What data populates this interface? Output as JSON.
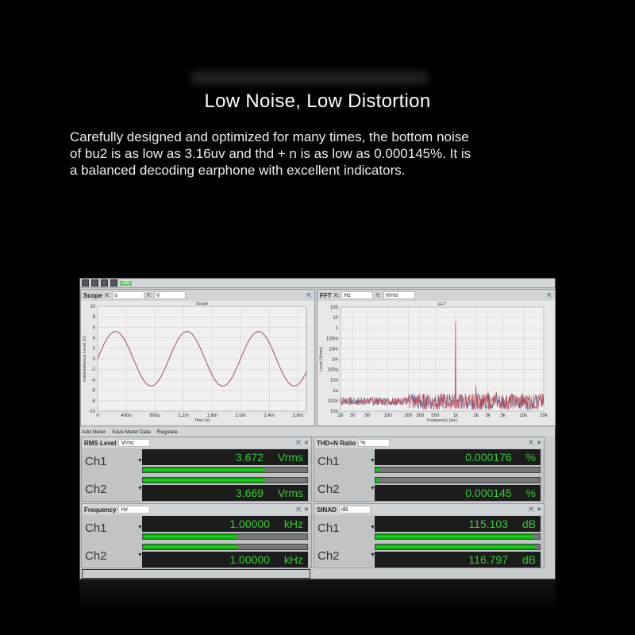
{
  "heading": {
    "title": "Low Noise, Low Distortion",
    "lines": [
      "Carefully designed and optimized for many times, the bottom noise",
      "of bu2 is as low as 3.16uv and thd + n is as low as 0.000145%. It is",
      "a balanced decoding earphone with excellent indicators."
    ]
  },
  "app": {
    "toolbar": {
      "on_label": "ON"
    },
    "scope": {
      "title": "Scope",
      "x_label": "X:",
      "x_unit": "s",
      "y_label": "Y:",
      "y_unit": "V"
    },
    "fft": {
      "title": "FFT",
      "x_label": "X:",
      "x_unit": "Hz",
      "y_label": "Y:",
      "y_unit": "Vrms"
    },
    "meter_toolbar": {
      "add": "Add Meter",
      "save": "Save Meter Data",
      "regulate": "Regulate"
    },
    "meters": [
      {
        "title": "RMS Level",
        "unit_select": "Vrms",
        "channels": [
          {
            "name": "Ch1",
            "value": "3.672",
            "unit": "Vrms",
            "bar": 0.74
          },
          {
            "name": "Ch2",
            "value": "3.669",
            "unit": "Vrms",
            "bar": 0.74
          }
        ]
      },
      {
        "title": "THD+N Ratio",
        "unit_select": "%",
        "channels": [
          {
            "name": "Ch1",
            "value": "0.000176",
            "unit": "%",
            "bar": 0.03
          },
          {
            "name": "Ch2",
            "value": "0.000145",
            "unit": "%",
            "bar": 0.02
          }
        ]
      },
      {
        "title": "Frequency",
        "unit_select": "Hz",
        "channels": [
          {
            "name": "Ch1",
            "value": "1.00000",
            "unit": "kHz",
            "bar": 0.57
          },
          {
            "name": "Ch2",
            "value": "1.00000",
            "unit": "kHz",
            "bar": 0.57
          }
        ]
      },
      {
        "title": "SINAD",
        "unit_select": "dB",
        "channels": [
          {
            "name": "Ch1",
            "value": "115.103",
            "unit": "dB",
            "bar": 0.96
          },
          {
            "name": "Ch2",
            "value": "116.797",
            "unit": "dB",
            "bar": 0.97
          }
        ]
      }
    ]
  },
  "chart_data": [
    {
      "type": "line",
      "title": "Scope",
      "xlabel": "Time (s)",
      "ylabel": "Instantaneous Level (V)",
      "xlim": [
        0,
        0.00292
      ],
      "ylim": [
        -10,
        10
      ],
      "x_ticks": [
        "0",
        "400u",
        "800u",
        "1.2m",
        "1.6m",
        "2.0m",
        "2.4m",
        "2.8m"
      ],
      "y_ticks": [
        "10",
        "8",
        "6",
        "4",
        "2",
        "0",
        "-2",
        "-4",
        "-6",
        "-8",
        "-10"
      ],
      "series": [
        {
          "frequency_hz": 1000,
          "amplitude_v": 5.2,
          "color": "#a05060"
        }
      ],
      "grid": true
    },
    {
      "type": "line",
      "title": "FFT",
      "xlabel": "Frequency (Hz)",
      "ylabel": "Level (Vrms)",
      "x_scale": "log",
      "y_scale": "log",
      "xlim": [
        20,
        20000
      ],
      "ylim": [
        1e-08,
        100
      ],
      "x_ticks": [
        "20",
        "30",
        "50",
        "100",
        "200",
        "300",
        "500",
        "1k",
        "2k",
        "3k",
        "5k",
        "10k",
        "20k"
      ],
      "y_ticks": [
        "100",
        "10",
        "1",
        "100m",
        "10m",
        "1m",
        "100u",
        "10u",
        "1u",
        "100n",
        "10n"
      ],
      "noise_floor_vrms": 1e-07,
      "peaks": [
        {
          "x": 1000,
          "y": 3.6
        },
        {
          "x": 2000,
          "y": 3e-06
        },
        {
          "x": 3000,
          "y": 8e-07
        },
        {
          "x": 4000,
          "y": 6e-07
        }
      ],
      "series_colors": [
        "#4a5a90",
        "#c03a40"
      ],
      "grid": true
    }
  ]
}
